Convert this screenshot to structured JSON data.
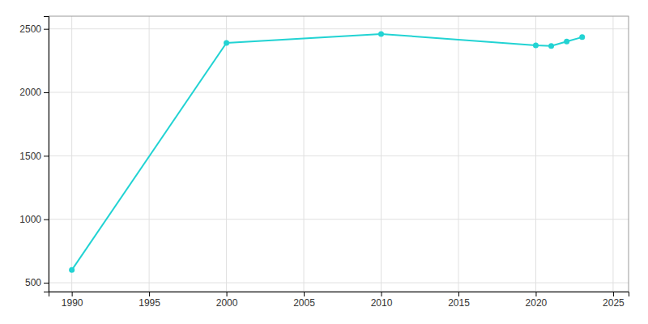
{
  "chart_data": {
    "type": "line",
    "x": [
      1990,
      2000,
      2010,
      2020,
      2021,
      2022,
      2023
    ],
    "values": [
      600,
      2390,
      2460,
      2370,
      2365,
      2400,
      2435
    ],
    "color": "#22d3d3",
    "marker": "circle",
    "xlim": [
      1988.5,
      2026
    ],
    "ylim": [
      430,
      2600
    ],
    "xticks": [
      1990,
      1995,
      2000,
      2005,
      2010,
      2015,
      2020,
      2025
    ],
    "yticks": [
      500,
      1000,
      1500,
      2000,
      2500
    ],
    "grid": true
  }
}
